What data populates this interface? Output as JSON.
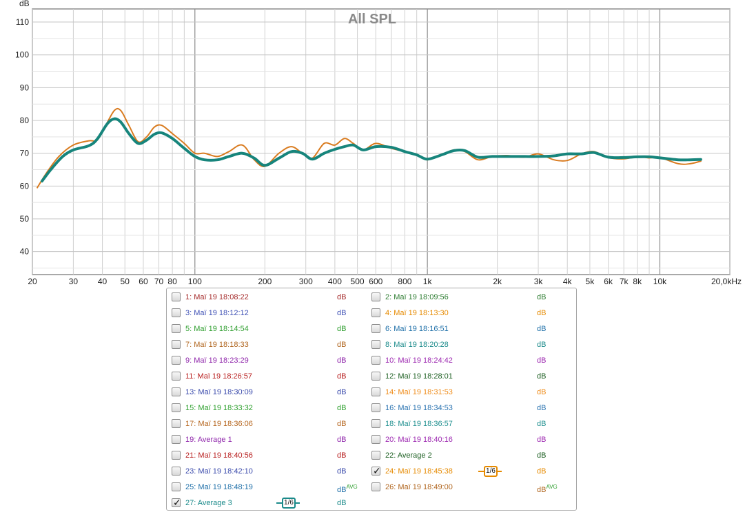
{
  "chart_data": {
    "type": "line",
    "title": "All SPL",
    "ylabel": "dB",
    "xscale": "log",
    "xlim": [
      20,
      20000
    ],
    "ylim": [
      33,
      114
    ],
    "grid": true,
    "y_ticks": [
      "40",
      "50",
      "60",
      "70",
      "80",
      "90",
      "100",
      "110"
    ],
    "y_tick_values": [
      40,
      50,
      60,
      70,
      80,
      90,
      100,
      110
    ],
    "x_ticks": [
      {
        "v": 20,
        "label": "20"
      },
      {
        "v": 30,
        "label": "30"
      },
      {
        "v": 40,
        "label": "40"
      },
      {
        "v": 50,
        "label": "50"
      },
      {
        "v": 60,
        "label": "60"
      },
      {
        "v": 70,
        "label": "70"
      },
      {
        "v": 80,
        "label": "80"
      },
      {
        "v": 100,
        "label": "100"
      },
      {
        "v": 200,
        "label": "200"
      },
      {
        "v": 300,
        "label": "300"
      },
      {
        "v": 400,
        "label": "400"
      },
      {
        "v": 500,
        "label": "500"
      },
      {
        "v": 600,
        "label": "600"
      },
      {
        "v": 800,
        "label": "800"
      },
      {
        "v": 1000,
        "label": "1k"
      },
      {
        "v": 2000,
        "label": "2k"
      },
      {
        "v": 3000,
        "label": "3k"
      },
      {
        "v": 4000,
        "label": "4k"
      },
      {
        "v": 5000,
        "label": "5k"
      },
      {
        "v": 6000,
        "label": "6k"
      },
      {
        "v": 7000,
        "label": "7k"
      },
      {
        "v": 8000,
        "label": "8k"
      },
      {
        "v": 10000,
        "label": "10k"
      },
      {
        "v": 20000,
        "label": "20,0kHz"
      }
    ],
    "series": [
      {
        "name": "24: Maï 19 18:45:38",
        "color": "#d97b1f",
        "x": [
          21,
          23,
          26,
          30,
          35,
          38,
          41,
          45,
          48,
          52,
          57,
          62,
          67,
          72,
          80,
          90,
          100,
          110,
          125,
          140,
          160,
          180,
          200,
          230,
          260,
          290,
          320,
          360,
          400,
          440,
          480,
          530,
          600,
          700,
          800,
          900,
          1000,
          1150,
          1300,
          1450,
          1650,
          1900,
          2200,
          2600,
          3000,
          3500,
          4000,
          4600,
          5200,
          6000,
          7000,
          8000,
          9000,
          10000,
          12000,
          13500,
          15000
        ],
        "y": [
          59.5,
          64,
          69,
          72.5,
          73.8,
          74,
          78,
          83,
          83,
          78.5,
          73.5,
          75,
          78,
          78.5,
          76,
          73,
          70,
          70,
          69,
          70.5,
          72.5,
          68,
          66,
          70,
          72,
          70,
          68.5,
          73,
          72.5,
          74.5,
          73,
          71,
          73,
          71.5,
          70.5,
          69.5,
          68,
          69.5,
          71,
          70.5,
          68,
          69,
          69.3,
          68.8,
          69.8,
          68,
          67.8,
          69.8,
          70.5,
          68.7,
          68.3,
          69,
          68.6,
          68.7,
          66.8,
          66.8,
          67.6
        ]
      },
      {
        "name": "27: Average 3",
        "color": "#17857c",
        "x": [
          22,
          24,
          27,
          30,
          35,
          38,
          42,
          45,
          48,
          52,
          57,
          62,
          67,
          72,
          80,
          90,
          100,
          110,
          125,
          140,
          160,
          180,
          200,
          230,
          260,
          290,
          320,
          360,
          400,
          440,
          480,
          530,
          600,
          700,
          800,
          900,
          1000,
          1150,
          1300,
          1450,
          1650,
          1900,
          2200,
          2600,
          3000,
          3500,
          4000,
          4600,
          5200,
          6000,
          7000,
          8000,
          9000,
          10000,
          12000,
          13500,
          15000
        ],
        "y": [
          61.5,
          65,
          69,
          71,
          72.3,
          74.3,
          79,
          80.5,
          79.5,
          76,
          73,
          74,
          75.8,
          76.2,
          74.5,
          71.5,
          69,
          68,
          68,
          69,
          70,
          68.5,
          66.3,
          68.5,
          70.5,
          70,
          68.2,
          70,
          71.2,
          72,
          72.5,
          71,
          72,
          71.8,
          70.5,
          69.5,
          68.2,
          69.5,
          70.8,
          70.8,
          68.8,
          69,
          69,
          69,
          69,
          69.2,
          69.8,
          69.8,
          70.2,
          68.8,
          68.7,
          68.9,
          68.9,
          68.6,
          68,
          68,
          68.1
        ]
      }
    ]
  },
  "legend": {
    "items": [
      {
        "label": "1: Maï 19 18:08:22",
        "unit": "dB",
        "avg": "",
        "color": "#a52a2a",
        "unit_color": "#a52a2a",
        "checked": false
      },
      {
        "label": "2: Maï 19 18:09:56",
        "unit": "dB",
        "avg": "",
        "color": "#2e7d32",
        "unit_color": "#2e7d32",
        "checked": false
      },
      {
        "label": "3: Maï 19 18:12:12",
        "unit": "dB",
        "avg": "",
        "color": "#3f51b5",
        "unit_color": "#3f51b5",
        "checked": false
      },
      {
        "label": "4: Maï 19 18:13:30",
        "unit": "dB",
        "avg": "",
        "color": "#e68a00",
        "unit_color": "#e68a00",
        "checked": false
      },
      {
        "label": "5: Maï 19 18:14:54",
        "unit": "dB",
        "avg": "",
        "color": "#2e9e2e",
        "unit_color": "#2e9e2e",
        "checked": false
      },
      {
        "label": "6: Maï 19 18:16:51",
        "unit": "dB",
        "avg": "",
        "color": "#1e6fa8",
        "unit_color": "#1e6fa8",
        "checked": false
      },
      {
        "label": "7: Maï 19 18:18:33",
        "unit": "dB",
        "avg": "",
        "color": "#b0651e",
        "unit_color": "#b0651e",
        "checked": false
      },
      {
        "label": "8: Maï 19 18:20:28",
        "unit": "dB",
        "avg": "",
        "color": "#1a8a8a",
        "unit_color": "#1a8a8a",
        "checked": false
      },
      {
        "label": "9: Maï 19 18:23:29",
        "unit": "dB",
        "avg": "",
        "color": "#8e24aa",
        "unit_color": "#8e24aa",
        "checked": false
      },
      {
        "label": "10: Maï 19 18:24:42",
        "unit": "dB",
        "avg": "",
        "color": "#9c27b0",
        "unit_color": "#9c27b0",
        "checked": false
      },
      {
        "label": "11: Maï 19 18:26:57",
        "unit": "dB",
        "avg": "",
        "color": "#b71c1c",
        "unit_color": "#b71c1c",
        "checked": false
      },
      {
        "label": "12: Maï 19 18:28:01",
        "unit": "dB",
        "avg": "",
        "color": "#1b5e20",
        "unit_color": "#1b5e20",
        "checked": false
      },
      {
        "label": "13: Maï 19 18:30:09",
        "unit": "dB",
        "avg": "",
        "color": "#3949ab",
        "unit_color": "#3949ab",
        "checked": false
      },
      {
        "label": "14: Maï 19 18:31:53",
        "unit": "dB",
        "avg": "",
        "color": "#ef8c1a",
        "unit_color": "#ef8c1a",
        "checked": false
      },
      {
        "label": "15: Maï 19 18:33:32",
        "unit": "dB",
        "avg": "",
        "color": "#2ea02e",
        "unit_color": "#2ea02e",
        "checked": false
      },
      {
        "label": "16: Maï 19 18:34:53",
        "unit": "dB",
        "avg": "",
        "color": "#2872b0",
        "unit_color": "#2872b0",
        "checked": false
      },
      {
        "label": "17: Maï 19 18:36:06",
        "unit": "dB",
        "avg": "",
        "color": "#b5651d",
        "unit_color": "#b5651d",
        "checked": false
      },
      {
        "label": "18: Maï 19 18:36:57",
        "unit": "dB",
        "avg": "",
        "color": "#1f8f8f",
        "unit_color": "#1f8f8f",
        "checked": false
      },
      {
        "label": "19: Average 1",
        "unit": "dB",
        "avg": "",
        "color": "#8e24aa",
        "unit_color": "#8e24aa",
        "checked": false
      },
      {
        "label": "20: Maï 19 18:40:16",
        "unit": "dB",
        "avg": "",
        "color": "#9c27b0",
        "unit_color": "#9c27b0",
        "checked": false
      },
      {
        "label": "21: Maï 19 18:40:56",
        "unit": "dB",
        "avg": "",
        "color": "#b71c1c",
        "unit_color": "#b71c1c",
        "checked": false
      },
      {
        "label": "22: Average 2",
        "unit": "dB",
        "avg": "",
        "color": "#1b5e20",
        "unit_color": "#1b5e20",
        "checked": false
      },
      {
        "label": "23: Maï 19 18:42:10",
        "unit": "dB",
        "avg": "",
        "color": "#3949ab",
        "unit_color": "#3949ab",
        "checked": false
      },
      {
        "label": "24: Maï 19 18:45:38",
        "unit": "dB",
        "avg": "",
        "color": "#e68a00",
        "unit_color": "#e68a00",
        "checked": true,
        "smoothing": "1/6"
      },
      {
        "label": "25: Maï 19 18:48:19",
        "unit": "dB",
        "avg": "AVG",
        "color": "#1e6fa8",
        "unit_color": "#1e6fa8",
        "checked": false
      },
      {
        "label": "26: Maï 19 18:49:00",
        "unit": "dB",
        "avg": "AVG",
        "color": "#b0651e",
        "unit_color": "#b0651e",
        "checked": false
      },
      {
        "label": "27: Average 3",
        "unit": "dB",
        "avg": "",
        "color": "#1a8a8a",
        "unit_color": "#1a8a8a",
        "checked": true,
        "smoothing": "1/6"
      }
    ]
  }
}
